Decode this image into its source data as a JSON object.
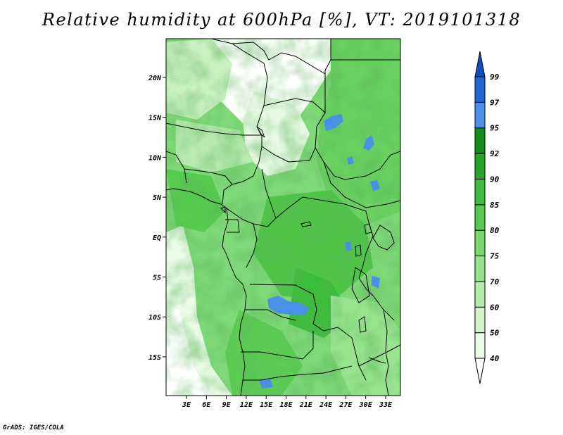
{
  "title": "Relative humidity at 600hPa [%], VT: 2019101318",
  "credit": "GrADS: IGES/COLA",
  "map": {
    "lon_labels": [
      "3E",
      "6E",
      "9E",
      "12E",
      "15E",
      "18E",
      "21E",
      "24E",
      "27E",
      "30E",
      "33E"
    ],
    "lat_labels": [
      "20N",
      "15N",
      "10N",
      "5N",
      "EQ",
      "5S",
      "10S",
      "15S"
    ]
  },
  "colorbar": {
    "levels": [
      "40",
      "50",
      "60",
      "70",
      "75",
      "80",
      "85",
      "90",
      "92",
      "95",
      "97",
      "99"
    ],
    "colors": [
      "#ffffff",
      "#eafbe6",
      "#d2f5cb",
      "#b4ecad",
      "#94e38c",
      "#75d96c",
      "#55cc4f",
      "#3cbc3b",
      "#27a528",
      "#138c19",
      "#4a90e8",
      "#1f68d8",
      "#0d4fc4"
    ]
  }
}
